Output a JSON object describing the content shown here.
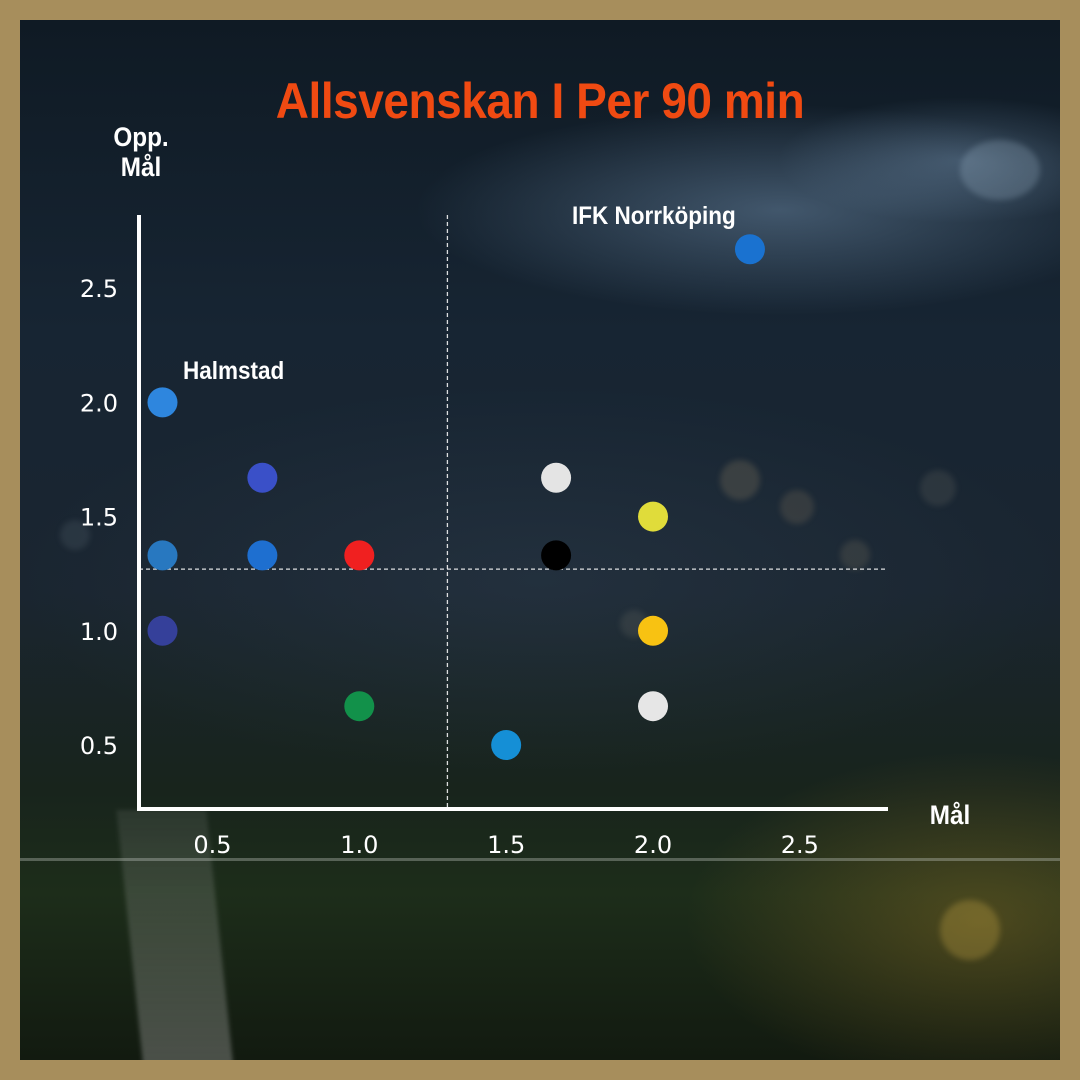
{
  "chart_data": {
    "type": "scatter",
    "title": "Allsvenskan I Per 90 min",
    "xlabel": "Mål",
    "ylabel": "Opp. Mål",
    "xlim": [
      0.25,
      2.8
    ],
    "ylim": [
      0.22,
      2.82
    ],
    "xticks": [
      0.5,
      1.0,
      1.5,
      2.0,
      2.5
    ],
    "yticks": [
      0.5,
      1.0,
      1.5,
      2.0,
      2.5
    ],
    "xtick_labels": [
      "0.5",
      "1.0",
      "1.5",
      "2.0",
      "2.5"
    ],
    "ytick_labels": [
      "0.5",
      "1.0",
      "1.5",
      "2.0",
      "2.5"
    ],
    "reference_lines": {
      "x": 1.3,
      "y": 1.27
    },
    "grid": false,
    "points": [
      {
        "x": 2.33,
        "y": 2.67,
        "color": "#1a72d0",
        "label": "IFK Norrköping"
      },
      {
        "x": 0.33,
        "y": 2.0,
        "color": "#2e86de",
        "label": "Halmstad"
      },
      {
        "x": 0.67,
        "y": 1.67,
        "color": "#3a50c8"
      },
      {
        "x": 1.67,
        "y": 1.67,
        "color": "#e4e4e4"
      },
      {
        "x": 2.0,
        "y": 1.5,
        "color": "#e0dc3a"
      },
      {
        "x": 0.33,
        "y": 1.33,
        "color": "#2878c0"
      },
      {
        "x": 0.67,
        "y": 1.33,
        "color": "#1e6fd0"
      },
      {
        "x": 1.0,
        "y": 1.33,
        "color": "#f02020"
      },
      {
        "x": 1.67,
        "y": 1.33,
        "color": "#000000"
      },
      {
        "x": 0.33,
        "y": 1.0,
        "color": "#35409a"
      },
      {
        "x": 2.0,
        "y": 1.0,
        "color": "#f8c212"
      },
      {
        "x": 1.0,
        "y": 0.67,
        "color": "#12914a"
      },
      {
        "x": 2.0,
        "y": 0.67,
        "color": "#e6e6e6"
      },
      {
        "x": 1.5,
        "y": 0.5,
        "color": "#158fd6"
      }
    ]
  }
}
